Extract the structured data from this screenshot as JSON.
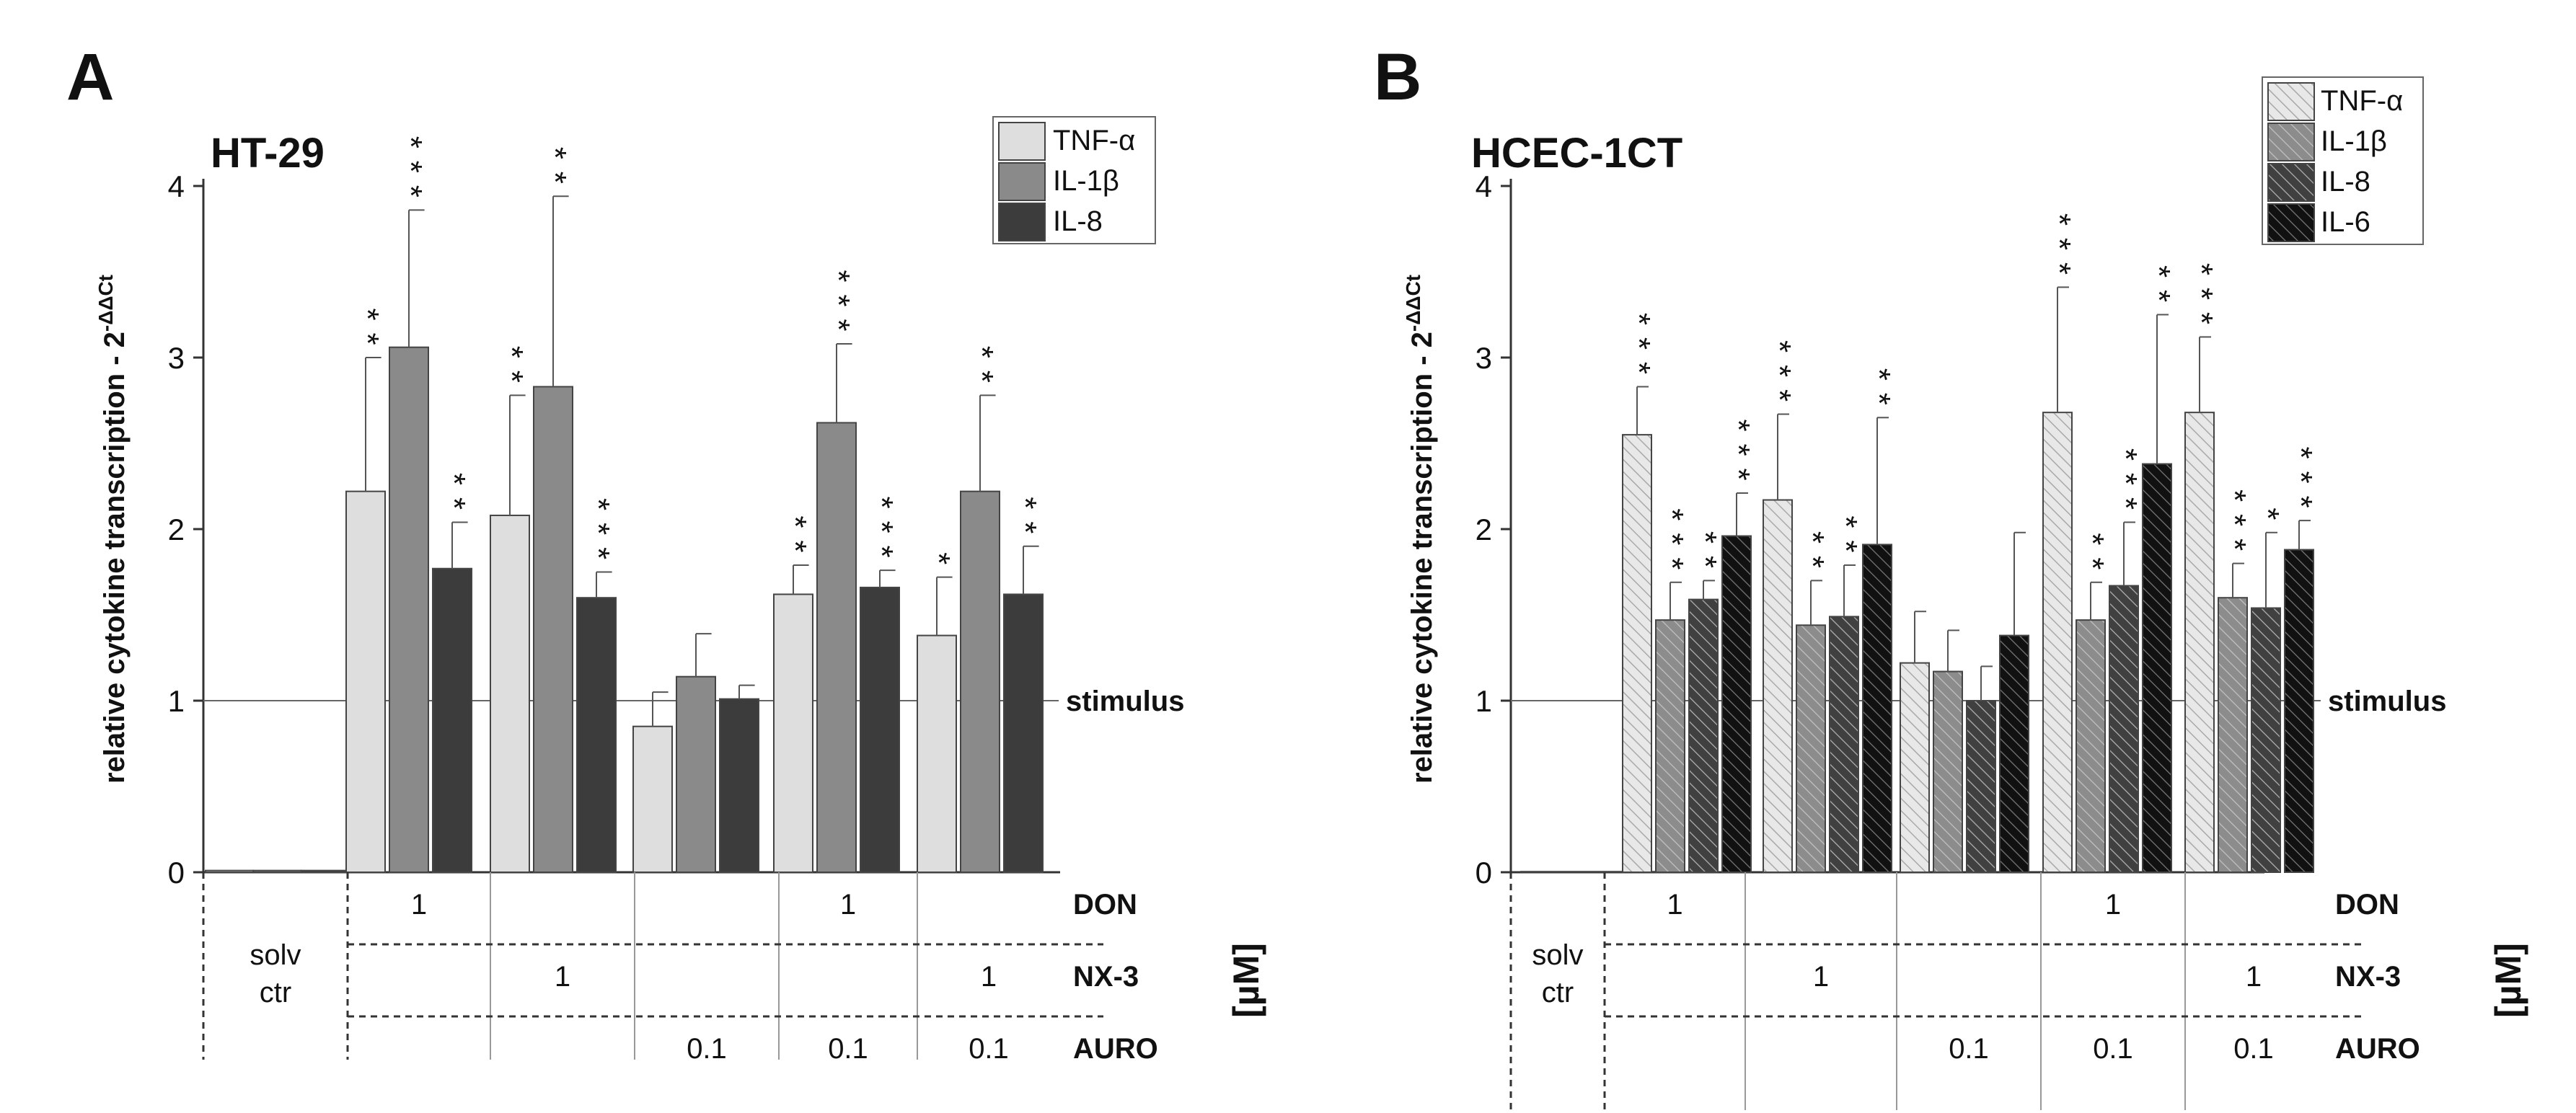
{
  "chart_data": [
    {
      "type": "bar",
      "panel_label": "A",
      "title": "HT-29",
      "ylabel": "relative cytokine transcription - 2",
      "ylabel_sup": "-ΔΔCt",
      "ylim": [
        0,
        4
      ],
      "yticks": [
        "0",
        "1",
        "2",
        "3",
        "4"
      ],
      "reference_line": {
        "value": 1,
        "label": "stimulus"
      },
      "series": [
        {
          "name": "TNF-α",
          "color": "#dedede",
          "hatch": false,
          "values": [
            0.01,
            2.22,
            2.08,
            0.85,
            1.62,
            1.38
          ],
          "errors": [
            0,
            0.78,
            0.7,
            0.2,
            0.17,
            0.34
          ],
          "stars": [
            "",
            "**",
            "**",
            "",
            "**",
            "*"
          ]
        },
        {
          "name": "IL-1β",
          "color": "#8a8a8a",
          "hatch": false,
          "values": [
            0.01,
            3.06,
            2.83,
            1.14,
            2.62,
            2.22
          ],
          "errors": [
            0,
            0.8,
            1.11,
            0.25,
            0.46,
            0.56
          ],
          "stars": [
            "",
            "***",
            "**",
            "",
            "***",
            "**"
          ]
        },
        {
          "name": "IL-8",
          "color": "#3c3c3c",
          "hatch": false,
          "values": [
            0.01,
            1.77,
            1.6,
            1.01,
            1.66,
            1.62
          ],
          "errors": [
            0,
            0.27,
            0.15,
            0.08,
            0.1,
            0.28
          ],
          "stars": [
            "",
            "**",
            "***",
            "",
            "***",
            "**"
          ]
        }
      ],
      "treatment_rows": [
        {
          "name": "DON",
          "values": [
            "",
            "1",
            "",
            "",
            "1",
            ""
          ]
        },
        {
          "name": "NX-3",
          "values": [
            "",
            "",
            "1",
            "",
            "",
            "1"
          ]
        },
        {
          "name": "AURO",
          "values": [
            "",
            "",
            "",
            "0.1",
            "0.1",
            "0.1"
          ]
        }
      ],
      "control_label": [
        "solv",
        "ctr"
      ],
      "unit_label": "[µM]"
    },
    {
      "type": "bar",
      "panel_label": "B",
      "title": "HCEC-1CT",
      "ylabel": "relative cytokine transcription - 2",
      "ylabel_sup": "-ΔΔCt",
      "ylim": [
        0,
        4
      ],
      "yticks": [
        "0",
        "1",
        "2",
        "3",
        "4"
      ],
      "reference_line": {
        "value": 1,
        "label": "stimulus"
      },
      "series": [
        {
          "name": "TNF-α",
          "color": "#e8e8e8",
          "hatch": true,
          "values": [
            0,
            2.55,
            2.17,
            1.22,
            2.68,
            2.68
          ],
          "errors": [
            0,
            0.28,
            0.5,
            0.3,
            0.73,
            0.44
          ],
          "stars": [
            "",
            "***",
            "***",
            "",
            "***",
            "***"
          ]
        },
        {
          "name": "IL-1β",
          "color": "#8c8c8c",
          "hatch": true,
          "values": [
            0,
            1.47,
            1.44,
            1.17,
            1.47,
            1.6
          ],
          "errors": [
            0,
            0.22,
            0.26,
            0.24,
            0.22,
            0.2
          ],
          "stars": [
            "",
            "***",
            "**",
            "",
            "**",
            "***"
          ]
        },
        {
          "name": "IL-8",
          "color": "#404040",
          "hatch": true,
          "values": [
            0,
            1.59,
            1.49,
            1.0,
            1.67,
            1.54
          ],
          "errors": [
            0,
            0.11,
            0.3,
            0.2,
            0.37,
            0.44
          ],
          "stars": [
            "",
            "**",
            "**",
            "",
            "***",
            "*"
          ]
        },
        {
          "name": "IL-6",
          "color": "#111111",
          "hatch": true,
          "values": [
            0,
            1.96,
            1.91,
            1.38,
            2.38,
            1.88
          ],
          "errors": [
            0,
            0.25,
            0.74,
            0.6,
            0.87,
            0.17
          ],
          "stars": [
            "",
            "***",
            "**",
            "",
            "**",
            "***"
          ]
        }
      ],
      "treatment_rows": [
        {
          "name": "DON",
          "values": [
            "",
            "1",
            "",
            "",
            "1",
            ""
          ]
        },
        {
          "name": "NX-3",
          "values": [
            "",
            "",
            "1",
            "",
            "",
            "1"
          ]
        },
        {
          "name": "AURO",
          "values": [
            "",
            "",
            "",
            "0.1",
            "0.1",
            "0.1"
          ]
        }
      ],
      "control_label": [
        "solv",
        "ctr"
      ],
      "unit_label": "[µM]"
    }
  ]
}
